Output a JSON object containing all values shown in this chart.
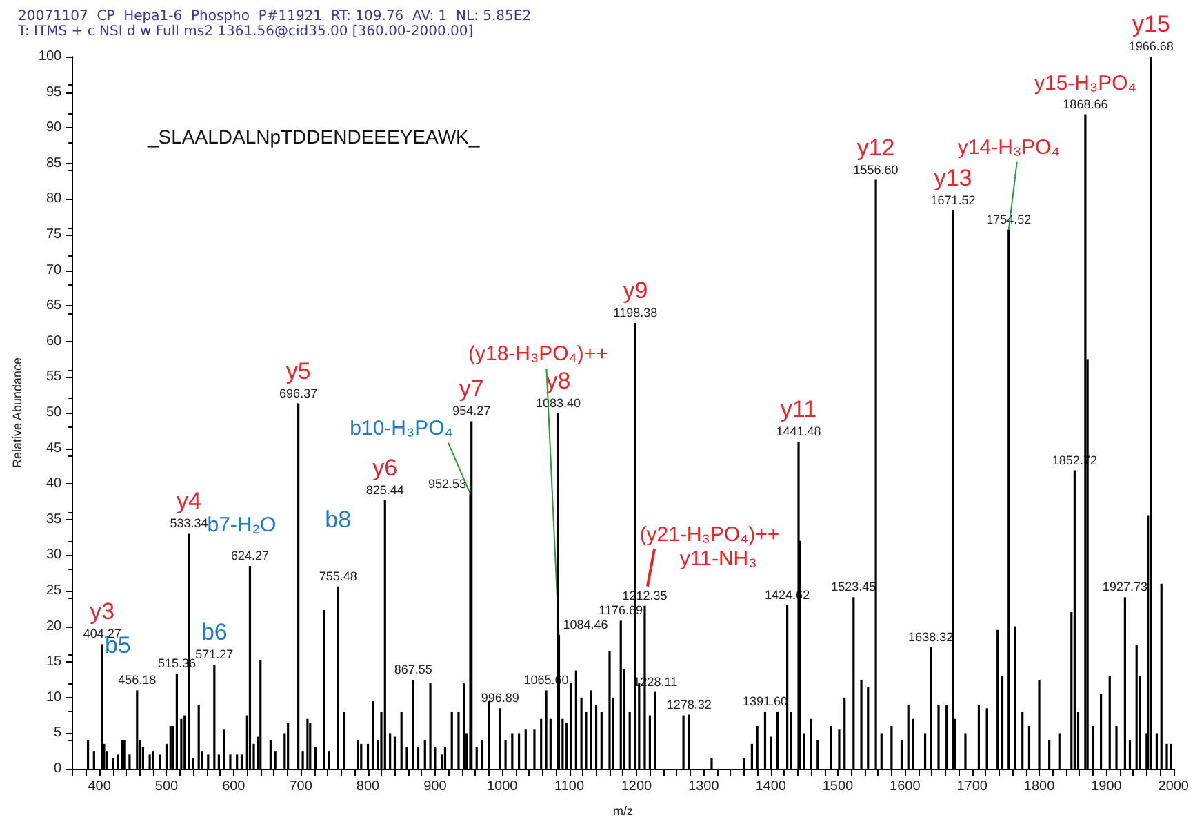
{
  "chart_data": {
    "type": "bar",
    "title": "20071107  CP  Hepa1-6  Phospho  P#11921  RT: 109.76  AV: 1  NL: 5.85E2",
    "subtitle": "T: ITMS + c NSI d w Full ms2 1361.56@cid35.00 [360.00-2000.00]",
    "xlabel": "m/z",
    "ylabel": "Relative Abundance",
    "x": [
      383,
      392,
      404.27,
      407,
      411,
      420,
      428,
      434,
      437,
      445,
      456.18,
      460,
      465,
      475,
      480,
      490,
      500,
      506,
      510,
      515.36,
      522,
      527,
      533.34,
      540,
      548,
      553,
      562,
      571.27,
      578,
      586,
      595,
      605,
      612,
      620,
      624.27,
      630,
      636,
      640,
      655,
      662,
      676,
      681,
      696.37,
      703,
      710,
      714,
      722,
      735,
      742,
      755.48,
      765,
      785,
      790,
      800,
      808,
      815,
      820,
      825.44,
      833,
      840,
      850,
      858,
      867.55,
      875,
      885,
      893,
      900,
      910,
      915,
      925,
      935,
      943,
      947,
      952.53,
      954.27,
      962,
      970,
      980,
      996.89,
      1005,
      1015,
      1025,
      1035,
      1048,
      1058,
      1065.6,
      1072,
      1083.4,
      1084.46,
      1090,
      1096,
      1102,
      1110,
      1118,
      1125,
      1132,
      1140,
      1148,
      1160,
      1165,
      1176.69,
      1182,
      1190,
      1198.38,
      1204,
      1212.35,
      1220,
      1228.11,
      1270,
      1278.32,
      1312,
      1360,
      1372,
      1380,
      1391.6,
      1400,
      1410,
      1424.62,
      1430,
      1441.48,
      1443,
      1450,
      1460,
      1470,
      1490,
      1502,
      1510,
      1523.45,
      1535,
      1545,
      1556.6,
      1565,
      1580,
      1595,
      1605,
      1612,
      1630,
      1638.32,
      1650,
      1662,
      1671.52,
      1675,
      1690,
      1710,
      1722,
      1738,
      1745,
      1754.52,
      1764,
      1775,
      1785,
      1800,
      1815,
      1830,
      1848,
      1852.72,
      1858,
      1868.66,
      1872,
      1880,
      1892,
      1905,
      1915,
      1927.73,
      1935,
      1945,
      1950,
      1960,
      1962,
      1966.68,
      1975,
      1982,
      1990,
      1996
    ],
    "values": [
      4,
      2.5,
      17.5,
      3.5,
      2.5,
      1.5,
      2,
      4,
      4,
      2,
      11,
      4,
      3,
      2,
      2.5,
      2,
      3.5,
      6,
      6,
      13.4,
      7,
      7.5,
      33,
      1.5,
      9,
      2.5,
      2,
      14.6,
      2,
      5.5,
      2,
      2,
      2,
      7.5,
      28.5,
      3.5,
      4.5,
      15.3,
      4,
      2.5,
      5,
      6.5,
      51.3,
      2.5,
      7,
      6.5,
      3,
      22.3,
      2.5,
      25.6,
      8,
      4,
      3.5,
      3.5,
      9.5,
      4,
      8,
      37.7,
      5,
      4.5,
      8,
      3,
      12.5,
      3,
      4,
      12,
      3,
      2,
      3,
      8,
      8,
      12,
      5,
      38.6,
      48.8,
      3,
      4,
      9.5,
      8.5,
      4,
      5,
      5,
      5.5,
      5.5,
      7,
      11,
      7,
      49.9,
      18.8,
      7,
      6.5,
      12,
      13.8,
      10,
      8,
      11,
      9,
      8,
      16.5,
      10,
      20.8,
      14,
      8,
      62.6,
      12,
      22.9,
      7.5,
      10.8,
      7.5,
      7.6,
      1.5,
      1.5,
      3.5,
      6,
      8,
      4.5,
      8,
      23,
      8,
      45.9,
      32,
      5,
      7,
      4,
      6,
      5.5,
      10,
      24.1,
      12.5,
      11.5,
      82.7,
      5,
      6,
      4,
      9,
      7,
      5,
      17.1,
      9,
      9,
      78.4,
      7,
      5,
      9,
      8.5,
      19.5,
      13,
      75.7,
      20,
      8,
      6,
      12.5,
      4,
      5,
      22,
      41.9,
      8,
      91.9,
      57.5,
      6,
      10.5,
      13,
      6,
      24.1,
      4,
      17.4,
      13,
      5,
      35.6,
      100,
      5,
      26,
      3.5,
      3.5
    ],
    "color": "#000000",
    "xlim": [
      360,
      2000
    ],
    "xticks": [
      {
        "value": 360,
        "label": null
      },
      {
        "value": 380,
        "label": null
      },
      400,
      {
        "value": 420,
        "label": null
      },
      {
        "value": 440,
        "label": null
      },
      {
        "value": 460,
        "label": null
      },
      {
        "value": 480,
        "label": null
      },
      500,
      {
        "value": 520,
        "label": null
      },
      {
        "value": 540,
        "label": null
      },
      {
        "value": 560,
        "label": null
      },
      {
        "value": 580,
        "label": null
      },
      600,
      {
        "value": 620,
        "label": null
      },
      {
        "value": 640,
        "label": null
      },
      {
        "value": 660,
        "label": null
      },
      {
        "value": 680,
        "label": null
      },
      700,
      {
        "value": 720,
        "label": null
      },
      {
        "value": 740,
        "label": null
      },
      {
        "value": 760,
        "label": null
      },
      {
        "value": 780,
        "label": null
      },
      800,
      {
        "value": 820,
        "label": null
      },
      {
        "value": 840,
        "label": null
      },
      {
        "value": 860,
        "label": null
      },
      {
        "value": 880,
        "label": null
      },
      900,
      {
        "value": 920,
        "label": null
      },
      {
        "value": 940,
        "label": null
      },
      {
        "value": 960,
        "label": null
      },
      {
        "value": 980,
        "label": null
      },
      1000,
      {
        "value": 1020,
        "label": null
      },
      {
        "value": 1040,
        "label": null
      },
      {
        "value": 1060,
        "label": null
      },
      {
        "value": 1080,
        "label": null
      },
      1100,
      {
        "value": 1120,
        "label": null
      },
      {
        "value": 1140,
        "label": null
      },
      {
        "value": 1160,
        "label": null
      },
      {
        "value": 1180,
        "label": null
      },
      1200,
      {
        "value": 1220,
        "label": null
      },
      {
        "value": 1240,
        "label": null
      },
      {
        "value": 1260,
        "label": null
      },
      {
        "value": 1280,
        "label": null
      },
      1300,
      {
        "value": 1320,
        "label": null
      },
      {
        "value": 1340,
        "label": null
      },
      {
        "value": 1360,
        "label": null
      },
      {
        "value": 1380,
        "label": null
      },
      1400,
      {
        "value": 1420,
        "label": null
      },
      {
        "value": 1440,
        "label": null
      },
      {
        "value": 1460,
        "label": null
      },
      {
        "value": 1480,
        "label": null
      },
      1500,
      {
        "value": 1520,
        "label": null
      },
      {
        "value": 1540,
        "label": null
      },
      {
        "value": 1560,
        "label": null
      },
      {
        "value": 1580,
        "label": null
      },
      1600,
      {
        "value": 1620,
        "label": null
      },
      {
        "value": 1640,
        "label": null
      },
      {
        "value": 1660,
        "label": null
      },
      {
        "value": 1680,
        "label": null
      },
      1700,
      {
        "value": 1720,
        "label": null
      },
      {
        "value": 1740,
        "label": null
      },
      {
        "value": 1760,
        "label": null
      },
      {
        "value": 1780,
        "label": null
      },
      1800,
      {
        "value": 1820,
        "label": null
      },
      {
        "value": 1840,
        "label": null
      },
      {
        "value": 1860,
        "label": null
      },
      {
        "value": 1880,
        "label": null
      },
      1900,
      {
        "value": 1920,
        "label": null
      },
      {
        "value": 1940,
        "label": null
      },
      {
        "value": 1960,
        "label": null
      },
      {
        "value": 1980,
        "label": null
      },
      2000
    ],
    "ylim": [
      0,
      100
    ],
    "yticks": [
      0,
      5,
      10,
      15,
      20,
      25,
      30,
      35,
      40,
      45,
      50,
      55,
      60,
      65,
      70,
      75,
      80,
      85,
      90,
      95,
      100
    ],
    "grid": false,
    "annotations": [
      {
        "text": "404.27",
        "x": 404.27,
        "y": 17.5
      },
      {
        "text": "456.18",
        "x": 456.18,
        "y": 11
      },
      {
        "text": "515.36",
        "x": 515.36,
        "y": 13.4
      },
      {
        "text": "533.34",
        "x": 533.34,
        "y": 33
      },
      {
        "text": "571.27",
        "x": 571.27,
        "y": 14.6
      },
      {
        "text": "624.27",
        "x": 624.27,
        "y": 28.5
      },
      {
        "text": "696.37",
        "x": 696.37,
        "y": 51.3
      },
      {
        "text": "755.48",
        "x": 755.48,
        "y": 25.6
      },
      {
        "text": "825.44",
        "x": 825.44,
        "y": 37.7
      },
      {
        "text": "867.55",
        "x": 867.55,
        "y": 12.5
      },
      {
        "text": "952.53",
        "x": 952.53,
        "y": 38.6
      },
      {
        "text": "954.27",
        "x": 954.27,
        "y": 48.8
      },
      {
        "text": "996.89",
        "x": 996.89,
        "y": 8.5
      },
      {
        "text": "1065.60",
        "x": 1065.6,
        "y": 11
      },
      {
        "text": "1083.40",
        "x": 1083.4,
        "y": 49.9
      },
      {
        "text": "1084.46",
        "x": 1084.46,
        "y": 18.8
      },
      {
        "text": "1176.69",
        "x": 1176.69,
        "y": 20.8
      },
      {
        "text": "1198.38",
        "x": 1198.38,
        "y": 62.6
      },
      {
        "text": "1212.35",
        "x": 1212.35,
        "y": 22.9
      },
      {
        "text": "1228.11",
        "x": 1228.11,
        "y": 10.8
      },
      {
        "text": "1278.32",
        "x": 1278.32,
        "y": 7.6
      },
      {
        "text": "1391.60",
        "x": 1391.6,
        "y": 8
      },
      {
        "text": "1424.62",
        "x": 1424.62,
        "y": 23
      },
      {
        "text": "1441.48",
        "x": 1441.48,
        "y": 45.9
      },
      {
        "text": "1523.45",
        "x": 1523.45,
        "y": 24.1
      },
      {
        "text": "1556.60",
        "x": 1556.6,
        "y": 82.7
      },
      {
        "text": "1638.32",
        "x": 1638.32,
        "y": 17.1
      },
      {
        "text": "1671.52",
        "x": 1671.52,
        "y": 78.4
      },
      {
        "text": "1754.52",
        "x": 1754.52,
        "y": 75.7
      },
      {
        "text": "1852.72",
        "x": 1852.72,
        "y": 41.9
      },
      {
        "text": "1868.66",
        "x": 1868.66,
        "y": 91.9
      },
      {
        "text": "1927.73",
        "x": 1927.73,
        "y": 24.1
      },
      {
        "text": "1966.68",
        "x": 1966.68,
        "y": 100
      },
      {
        "text": "y3",
        "x": 404.27,
        "y": 17.5
      },
      {
        "text": "b5",
        "x": 456.18,
        "y": 11
      },
      {
        "text": "y4",
        "x": 533.34,
        "y": 33
      },
      {
        "text": "b6",
        "x": 571.27,
        "y": 14.6
      },
      {
        "text": "b7-H₂O",
        "x": 624.27,
        "y": 28.5
      },
      {
        "text": "y5",
        "x": 696.37,
        "y": 51.3
      },
      {
        "text": "b8",
        "x": 755.48,
        "y": 25.6
      },
      {
        "text": "y6",
        "x": 825.44,
        "y": 37.7
      },
      {
        "text": "b10-H₃PO₄",
        "x": 952.53,
        "y": 38.6
      },
      {
        "text": "y7",
        "x": 954.27,
        "y": 48.8
      },
      {
        "text": "y8",
        "x": 1083.4,
        "y": 49.9
      },
      {
        "text": "(y18-H₃PO₄)++",
        "x": 1084.46,
        "y": 18.8
      },
      {
        "text": "y9",
        "x": 1198.38,
        "y": 62.6
      },
      {
        "text": "(y21-H₃PO₄)++",
        "x": 1212.35,
        "y": 22.9
      },
      {
        "text": "y11-NH₃",
        "x": 1424.62,
        "y": 23
      },
      {
        "text": "y11",
        "x": 1441.48,
        "y": 45.9
      },
      {
        "text": "y12",
        "x": 1556.6,
        "y": 82.7
      },
      {
        "text": "y13",
        "x": 1671.52,
        "y": 78.4
      },
      {
        "text": "y14-H₃PO₄",
        "x": 1754.52,
        "y": 75.7
      },
      {
        "text": "y15-H₃PO₄",
        "x": 1868.66,
        "y": 91.9
      },
      {
        "text": "y15",
        "x": 1966.68,
        "y": 100
      },
      "_SLAALDALNpTDDENDEEEYEAWK_"
    ]
  }
}
